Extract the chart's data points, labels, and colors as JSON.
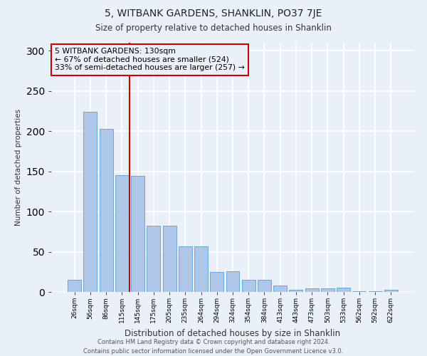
{
  "title1": "5, WITBANK GARDENS, SHANKLIN, PO37 7JE",
  "title2": "Size of property relative to detached houses in Shanklin",
  "xlabel": "Distribution of detached houses by size in Shanklin",
  "ylabel": "Number of detached properties",
  "categories": [
    "26sqm",
    "56sqm",
    "86sqm",
    "115sqm",
    "145sqm",
    "175sqm",
    "205sqm",
    "235sqm",
    "264sqm",
    "294sqm",
    "324sqm",
    "354sqm",
    "384sqm",
    "413sqm",
    "443sqm",
    "473sqm",
    "503sqm",
    "533sqm",
    "562sqm",
    "592sqm",
    "622sqm"
  ],
  "values": [
    15,
    224,
    203,
    145,
    144,
    82,
    82,
    57,
    57,
    25,
    26,
    15,
    15,
    8,
    3,
    4,
    4,
    5,
    1,
    1,
    3
  ],
  "bar_color": "#aec6e8",
  "bar_edge_color": "#5a9fd4",
  "vline_position": 3.5,
  "vline_color": "#cc0000",
  "annotation_box_text": "5 WITBANK GARDENS: 130sqm\n← 67% of detached houses are smaller (524)\n33% of semi-detached houses are larger (257) →",
  "annotation_box_color": "#cc0000",
  "bg_color": "#eaf0f8",
  "grid_color": "#ffffff",
  "footer_text": "Contains HM Land Registry data © Crown copyright and database right 2024.\nContains public sector information licensed under the Open Government Licence v3.0.",
  "ylim": [
    0,
    310
  ],
  "yticks": [
    0,
    50,
    100,
    150,
    200,
    250,
    300
  ]
}
